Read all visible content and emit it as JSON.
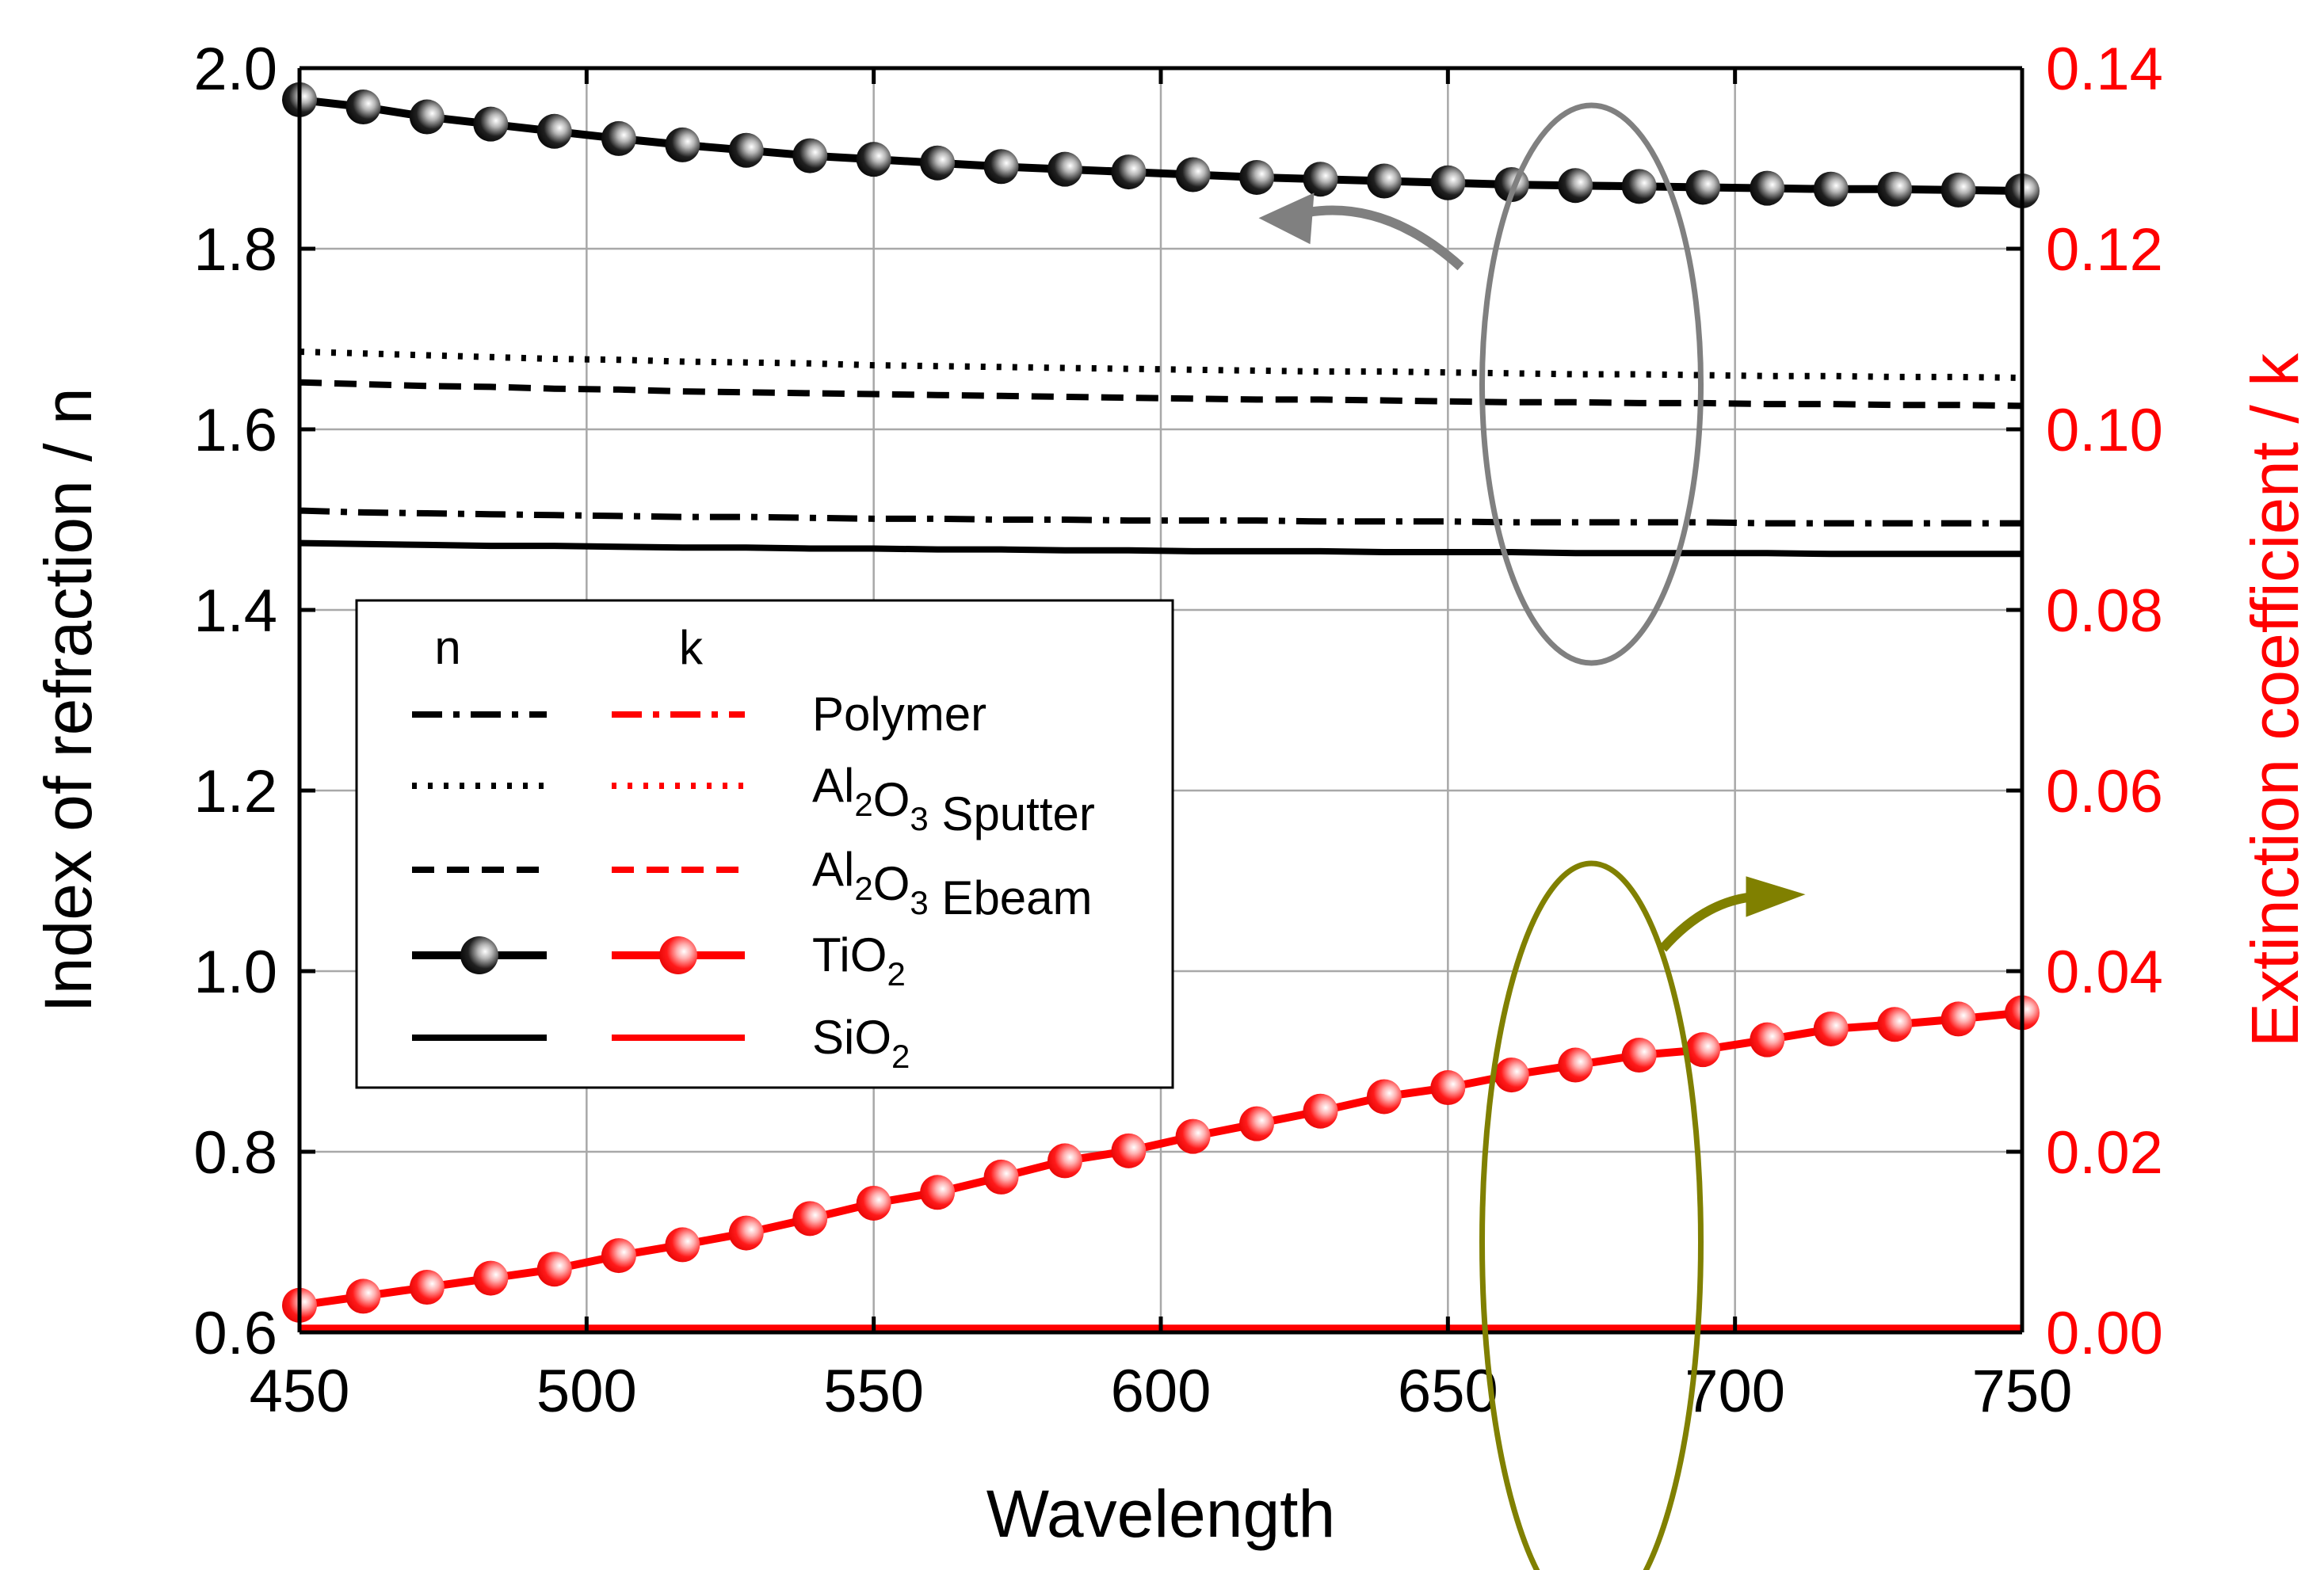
{
  "chart_data": {
    "type": "line",
    "xlabel": "Wavelength",
    "ylabel_left": "Index of refraction / n",
    "ylabel_right": "Extinction coefficient / k",
    "xlim": [
      450,
      750
    ],
    "ylim_left": [
      0.6,
      2.0
    ],
    "ylim_right": [
      0.0,
      0.14
    ],
    "x_ticks": [
      "450",
      "500",
      "550",
      "600",
      "650",
      "700",
      "750"
    ],
    "y_left_ticks": [
      "0.6",
      "0.8",
      "1.0",
      "1.2",
      "1.4",
      "1.6",
      "1.8",
      "2.0"
    ],
    "y_right_ticks": [
      "0.00",
      "0.02",
      "0.04",
      "0.06",
      "0.08",
      "0.10",
      "0.12",
      "0.14"
    ],
    "grid": true,
    "colors": {
      "n": "#000000",
      "k": "#ff0000",
      "n_arrow": "#808080",
      "k_arrow": "#808000"
    },
    "x": [
      450,
      461.1,
      472.2,
      483.3,
      494.4,
      505.6,
      516.7,
      527.8,
      538.9,
      550,
      561.1,
      572.2,
      583.3,
      594.4,
      605.6,
      616.7,
      627.8,
      638.9,
      650,
      661.1,
      672.2,
      683.3,
      694.4,
      705.6,
      716.7,
      727.8,
      738.9,
      750
    ],
    "series_n": [
      {
        "name": "Polymer",
        "style": "dashdot",
        "values": [
          1.51,
          1.508,
          1.507,
          1.506,
          1.505,
          1.504,
          1.503,
          1.503,
          1.502,
          1.501,
          1.501,
          1.5,
          1.5,
          1.499,
          1.499,
          1.499,
          1.498,
          1.498,
          1.498,
          1.497,
          1.497,
          1.497,
          1.497,
          1.496,
          1.496,
          1.496,
          1.496,
          1.496
        ]
      },
      {
        "name": "Al2O3 Sputter",
        "style": "dotted",
        "values": [
          1.686,
          1.684,
          1.682,
          1.68,
          1.678,
          1.677,
          1.675,
          1.674,
          1.673,
          1.671,
          1.67,
          1.669,
          1.668,
          1.667,
          1.666,
          1.665,
          1.664,
          1.664,
          1.663,
          1.662,
          1.661,
          1.661,
          1.66,
          1.659,
          1.659,
          1.658,
          1.658,
          1.657
        ]
      },
      {
        "name": "Al2O3 Ebeam",
        "style": "dashed",
        "values": [
          1.652,
          1.65,
          1.648,
          1.647,
          1.645,
          1.644,
          1.642,
          1.641,
          1.64,
          1.639,
          1.638,
          1.637,
          1.636,
          1.635,
          1.634,
          1.633,
          1.633,
          1.632,
          1.631,
          1.63,
          1.63,
          1.629,
          1.629,
          1.628,
          1.628,
          1.627,
          1.627,
          1.626
        ]
      },
      {
        "name": "TiO2",
        "style": "marker",
        "values": [
          1.965,
          1.957,
          1.946,
          1.938,
          1.93,
          1.922,
          1.915,
          1.909,
          1.903,
          1.899,
          1.895,
          1.891,
          1.888,
          1.885,
          1.882,
          1.879,
          1.877,
          1.875,
          1.873,
          1.871,
          1.87,
          1.869,
          1.868,
          1.867,
          1.866,
          1.866,
          1.865,
          1.864
        ]
      },
      {
        "name": "SiO2",
        "style": "solid",
        "values": [
          1.474,
          1.473,
          1.472,
          1.471,
          1.471,
          1.47,
          1.469,
          1.469,
          1.468,
          1.468,
          1.467,
          1.467,
          1.466,
          1.466,
          1.465,
          1.465,
          1.465,
          1.464,
          1.464,
          1.464,
          1.463,
          1.463,
          1.463,
          1.463,
          1.462,
          1.462,
          1.462,
          1.462
        ]
      }
    ],
    "series_k": [
      {
        "name": "TiO2",
        "style": "marker",
        "values": [
          0.003,
          0.004,
          0.005,
          0.006,
          0.007,
          0.0085,
          0.0097,
          0.011,
          0.0126,
          0.0143,
          0.0155,
          0.0172,
          0.019,
          0.0201,
          0.0217,
          0.0231,
          0.0245,
          0.0261,
          0.0271,
          0.0285,
          0.0296,
          0.0307,
          0.0313,
          0.0324,
          0.0336,
          0.0341,
          0.0347,
          0.0354
        ]
      },
      {
        "name": "SiO2",
        "style": "solid",
        "values": [
          0.0005,
          0.0005,
          0.0005,
          0.0005,
          0.0005,
          0.0005,
          0.0005,
          0.0005,
          0.0005,
          0.0005,
          0.0005,
          0.0005,
          0.0005,
          0.0005,
          0.0005,
          0.0005,
          0.0005,
          0.0005,
          0.0005,
          0.0005,
          0.0005,
          0.0005,
          0.0005,
          0.0005,
          0.0005,
          0.0005,
          0.0005,
          0.0005
        ]
      }
    ],
    "legend": {
      "placement": "center-left",
      "col_n": "n",
      "col_k": "k",
      "entries": [
        {
          "style": "dashdot",
          "label": "Polymer",
          "base": "Polymer",
          "sub1": "",
          "mid": "",
          "sub2": "",
          "tail": ""
        },
        {
          "style": "dotted",
          "label": "Al2O3 Sputter",
          "base": "Al",
          "sub1": "2",
          "mid": "O",
          "sub2": "3",
          "tail": " Sputter"
        },
        {
          "style": "dashed",
          "label": "Al2O3 Ebeam",
          "base": "Al",
          "sub1": "2",
          "mid": "O",
          "sub2": "3",
          "tail": " Ebeam"
        },
        {
          "style": "marker",
          "label": "TiO2",
          "base": "TiO",
          "sub1": "2",
          "mid": "",
          "sub2": "",
          "tail": ""
        },
        {
          "style": "solid",
          "label": "SiO2",
          "base": "SiO",
          "sub1": "2",
          "mid": "",
          "sub2": "",
          "tail": ""
        }
      ]
    },
    "annotations": [
      {
        "type": "ellipse",
        "color": "gray",
        "meaning": "n curves, arrow toward left axis",
        "center_x": 675,
        "center_n": 1.65
      },
      {
        "type": "ellipse",
        "color": "olive",
        "meaning": "k curve, arrow toward right axis",
        "center_x": 675,
        "center_k": 0.01
      }
    ]
  }
}
